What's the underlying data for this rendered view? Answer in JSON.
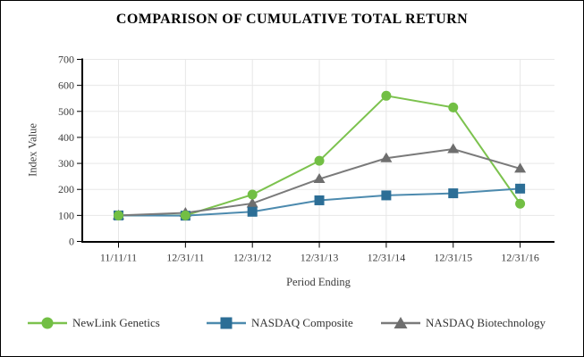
{
  "title": "COMPARISON OF CUMULATIVE TOTAL RETURN",
  "chart_data": {
    "type": "line",
    "title": "COMPARISON OF CUMULATIVE TOTAL RETURN",
    "xlabel": "Period Ending",
    "ylabel": "Index Value",
    "categories": [
      "11/11/11",
      "12/31/11",
      "12/31/12",
      "12/31/13",
      "12/31/14",
      "12/31/15",
      "12/31/16"
    ],
    "ylim": [
      0,
      700
    ],
    "ytick_step": 100,
    "grid": true,
    "legend_position": "bottom",
    "series": [
      {
        "name": "NewLink Genetics",
        "marker": "circle",
        "color": "#72BF44",
        "line_color": "#7CC24E",
        "values": [
          100,
          100,
          180,
          310,
          560,
          515,
          145
        ]
      },
      {
        "name": "NASDAQ Composite",
        "marker": "square",
        "color": "#2C6E96",
        "line_color": "#4C8AAE",
        "values": [
          100,
          99,
          114,
          158,
          177,
          185,
          203
        ]
      },
      {
        "name": "NASDAQ Biotechnology",
        "marker": "triangle",
        "color": "#6E6E6E",
        "line_color": "#7A7A7A",
        "values": [
          100,
          110,
          146,
          240,
          320,
          355,
          280
        ]
      }
    ]
  },
  "colors": {
    "axis": "#000000",
    "grid": "#e7e7e7",
    "tick_text": "#3c3c3c",
    "background": "#ffffff",
    "border": "#000000"
  }
}
